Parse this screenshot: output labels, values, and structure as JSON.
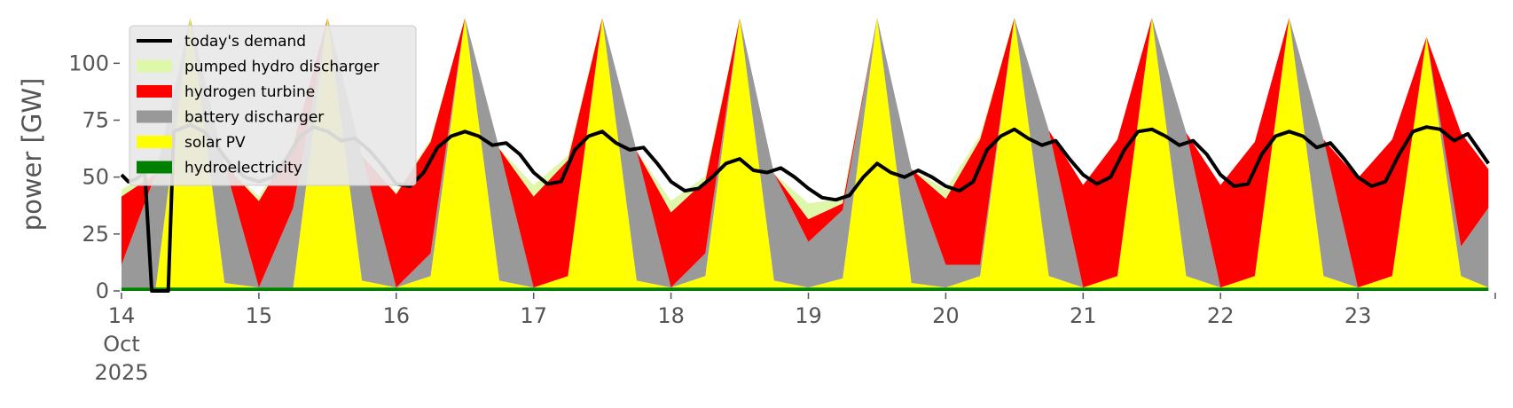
{
  "chart_data": {
    "type": "area",
    "title": "",
    "xlabel": "",
    "ylabel": "power [GW]",
    "ylim": [
      0,
      120
    ],
    "xlim": [
      14,
      24
    ],
    "y_ticks": [
      0,
      25,
      50,
      75,
      100
    ],
    "x_ticks": [
      {
        "pos": 14,
        "lines": [
          "14",
          "Oct",
          "2025"
        ]
      },
      {
        "pos": 15,
        "lines": [
          "15"
        ]
      },
      {
        "pos": 16,
        "lines": [
          "16"
        ]
      },
      {
        "pos": 17,
        "lines": [
          "17"
        ]
      },
      {
        "pos": 18,
        "lines": [
          "18"
        ]
      },
      {
        "pos": 19,
        "lines": [
          "19"
        ]
      },
      {
        "pos": 20,
        "lines": [
          "20"
        ]
      },
      {
        "pos": 21,
        "lines": [
          "21"
        ]
      },
      {
        "pos": 22,
        "lines": [
          "22"
        ]
      },
      {
        "pos": 23,
        "lines": [
          "23"
        ]
      }
    ],
    "grid": false,
    "legend_position": "top-left",
    "legend": [
      {
        "label": "today's demand",
        "color": "#000000",
        "kind": "line"
      },
      {
        "label": "pumped hydro discharger",
        "color": "#dff7a8",
        "kind": "area"
      },
      {
        "label": "hydrogen turbine",
        "color": "#ff0000",
        "kind": "area"
      },
      {
        "label": "battery discharger",
        "color": "#999999",
        "kind": "area"
      },
      {
        "label": "solar PV",
        "color": "#ffff00",
        "kind": "area"
      },
      {
        "label": "hydroelectricity",
        "color": "#008000",
        "kind": "area"
      }
    ],
    "x": [
      14.0,
      14.25,
      14.5,
      14.75,
      15.0,
      15.25,
      15.5,
      15.75,
      16.0,
      16.25,
      16.5,
      16.75,
      17.0,
      17.25,
      17.5,
      17.75,
      18.0,
      18.25,
      18.5,
      18.75,
      19.0,
      19.25,
      19.5,
      19.75,
      20.0,
      20.25,
      20.5,
      20.75,
      21.0,
      21.25,
      21.5,
      21.75,
      22.0,
      22.25,
      22.5,
      22.75,
      23.0,
      23.25,
      23.5,
      23.75,
      23.95
    ],
    "series": [
      {
        "name": "hydroelectricity",
        "color": "#008000",
        "values": [
          1.5,
          1.5,
          1.5,
          1.5,
          1.5,
          1.5,
          1.5,
          1.5,
          1.5,
          1.5,
          1.5,
          1.5,
          1.5,
          1.5,
          1.5,
          1.5,
          1.5,
          1.5,
          1.5,
          1.5,
          1.5,
          1.5,
          1.5,
          1.5,
          1.5,
          1.5,
          1.5,
          1.5,
          1.5,
          1.5,
          1.5,
          1.5,
          1.5,
          1.5,
          1.5,
          1.5,
          1.5,
          1.5,
          1.5,
          1.5,
          1.5
        ]
      },
      {
        "name": "solar PV",
        "color": "#ffff00",
        "values": [
          0,
          0,
          120,
          2,
          0,
          0,
          120,
          3,
          0,
          5,
          120,
          3,
          0,
          5,
          120,
          3,
          0,
          5,
          120,
          3,
          0,
          4,
          120,
          2,
          0,
          5,
          120,
          5,
          0,
          5,
          120,
          5,
          0,
          5,
          120,
          5,
          0,
          5,
          110,
          5,
          0
        ]
      },
      {
        "name": "battery discharger",
        "color": "#999999",
        "values": [
          10,
          50,
          0,
          52,
          0,
          35,
          0,
          55,
          0,
          10,
          0,
          58,
          0,
          0,
          0,
          57,
          0,
          10,
          0,
          47,
          20,
          30,
          0,
          50,
          10,
          5,
          0,
          64,
          0,
          0,
          0,
          63,
          0,
          0,
          0,
          60,
          0,
          0,
          0,
          13,
          35
        ]
      },
      {
        "name": "hydrogen turbine",
        "color": "#ff0000",
        "values": [
          30,
          0,
          0,
          0,
          38,
          28,
          0,
          0,
          41,
          49,
          0,
          0,
          40,
          51,
          0,
          0,
          33,
          32,
          0,
          0,
          10,
          3,
          0,
          0,
          29,
          55,
          0,
          0,
          45,
          60,
          0,
          0,
          45,
          59,
          0,
          0,
          48,
          60,
          0,
          50,
          17
        ]
      },
      {
        "name": "pumped hydro discharger",
        "color": "#dff7a8",
        "values": [
          3,
          2,
          0,
          0,
          2,
          2,
          0,
          0,
          1,
          1,
          0,
          0,
          5,
          2,
          0,
          0,
          5,
          2,
          0,
          0,
          7,
          2,
          0,
          0,
          4,
          2,
          0,
          0,
          0,
          0,
          0,
          0,
          0,
          0,
          0,
          0,
          0,
          0,
          0,
          0,
          0
        ]
      }
    ],
    "demand": {
      "name": "today's demand",
      "color": "#000000",
      "x": [
        14.0,
        14.05,
        14.1,
        14.17,
        14.22,
        14.25,
        14.3,
        14.34,
        14.38,
        14.5,
        14.6,
        14.7,
        14.8,
        14.9,
        15.0,
        15.1,
        15.2,
        15.3,
        15.4,
        15.5,
        15.6,
        15.7,
        15.8,
        15.9,
        16.0,
        16.1,
        16.2,
        16.3,
        16.4,
        16.5,
        16.6,
        16.7,
        16.8,
        16.9,
        17.0,
        17.1,
        17.2,
        17.3,
        17.4,
        17.5,
        17.6,
        17.7,
        17.8,
        17.9,
        18.0,
        18.1,
        18.2,
        18.3,
        18.4,
        18.5,
        18.6,
        18.7,
        18.8,
        18.9,
        19.0,
        19.1,
        19.2,
        19.3,
        19.4,
        19.5,
        19.6,
        19.7,
        19.8,
        19.9,
        20.0,
        20.1,
        20.2,
        20.3,
        20.4,
        20.5,
        20.6,
        20.7,
        20.8,
        20.9,
        21.0,
        21.1,
        21.2,
        21.3,
        21.4,
        21.5,
        21.6,
        21.7,
        21.8,
        21.9,
        22.0,
        22.1,
        22.2,
        22.3,
        22.4,
        22.5,
        22.6,
        22.7,
        22.8,
        22.9,
        23.0,
        23.1,
        23.2,
        23.3,
        23.4,
        23.5,
        23.6,
        23.7,
        23.8,
        23.95
      ],
      "values": [
        51,
        48,
        49,
        52,
        0,
        0,
        0,
        0,
        70,
        73,
        70,
        63,
        55,
        50,
        48,
        50,
        58,
        68,
        72,
        70,
        66,
        67,
        62,
        55,
        47,
        46,
        52,
        63,
        68,
        70,
        68,
        64,
        65,
        60,
        52,
        47,
        48,
        62,
        68,
        70,
        65,
        62,
        63,
        56,
        48,
        44,
        45,
        50,
        56,
        58,
        53,
        52,
        54,
        50,
        45,
        41,
        40,
        42,
        50,
        56,
        52,
        50,
        53,
        50,
        46,
        44,
        48,
        62,
        68,
        71,
        67,
        64,
        66,
        58,
        51,
        47,
        50,
        62,
        70,
        71,
        68,
        64,
        66,
        60,
        51,
        46,
        47,
        60,
        68,
        70,
        68,
        63,
        65,
        58,
        50,
        46,
        48,
        60,
        70,
        72,
        71,
        66,
        69,
        56
      ]
    }
  }
}
